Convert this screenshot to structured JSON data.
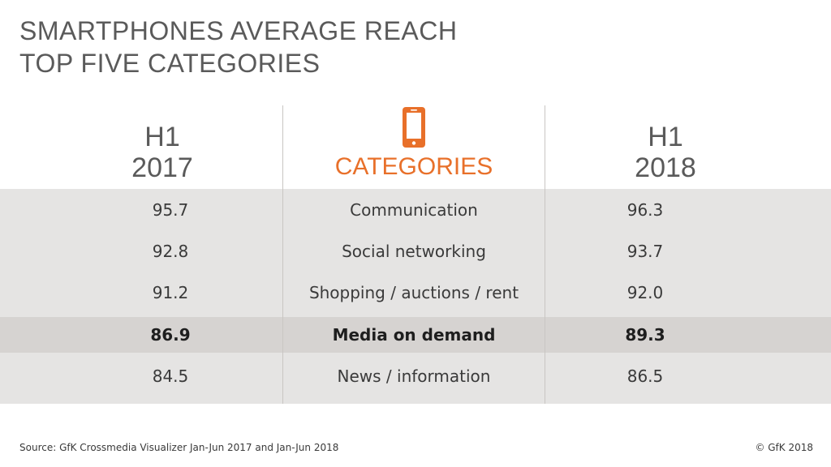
{
  "title": {
    "line1": "SMARTPHONES AVERAGE REACH",
    "line2": "TOP FIVE CATEGORIES"
  },
  "accent_color": "#e8702a",
  "icon": "smartphone-icon",
  "chart_data": {
    "type": "table",
    "columns": [
      {
        "line1": "H1",
        "line2": "2017"
      },
      {
        "label": "CATEGORIES"
      },
      {
        "line1": "H1",
        "line2": "2018"
      }
    ],
    "rows": [
      {
        "h1_2017": "95.7",
        "category": "Communication",
        "h1_2018": "96.3",
        "highlight": false
      },
      {
        "h1_2017": "92.8",
        "category": "Social networking",
        "h1_2018": "93.7",
        "highlight": false
      },
      {
        "h1_2017": "91.2",
        "category": "Shopping / auctions / rent",
        "h1_2018": "92.0",
        "highlight": false
      },
      {
        "h1_2017": "86.9",
        "category": "Media on demand",
        "h1_2018": "89.3",
        "highlight": true
      },
      {
        "h1_2017": "84.5",
        "category": "News / information",
        "h1_2018": "86.5",
        "highlight": false
      }
    ]
  },
  "footer": {
    "source": "Source: GfK Crossmedia Visualizer Jan-Jun 2017 and Jan-Jun 2018",
    "copyright": "© GfK 2018"
  }
}
